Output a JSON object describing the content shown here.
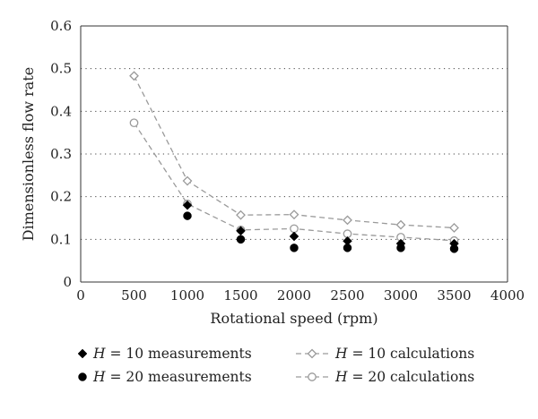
{
  "chart_data": {
    "type": "scatter",
    "xlabel": "Rotational speed (rpm)",
    "ylabel": "Dimensionless flow rate",
    "xlim": [
      0,
      4000
    ],
    "ylim": [
      0,
      0.6
    ],
    "x_ticks": [
      "0",
      "500",
      "1000",
      "1500",
      "2000",
      "2500",
      "3000",
      "3500",
      "4000"
    ],
    "y_ticks": [
      "0",
      "0.1",
      "0.2",
      "0.3",
      "0.4",
      "0.5",
      "0.6"
    ],
    "grid": "horizontal dotted",
    "legend_position": "bottom",
    "series": [
      {
        "name_var": "H",
        "name_rest": " = 10 measurements",
        "marker": "diamond-filled",
        "line": "none",
        "color": "#000000",
        "x": [
          1000,
          1500,
          2000,
          2500,
          3000,
          3500
        ],
        "y": [
          0.18,
          0.12,
          0.107,
          0.096,
          0.09,
          0.09
        ]
      },
      {
        "name_var": "H",
        "name_rest": " = 20 measurements",
        "marker": "circle-filled",
        "line": "none",
        "color": "#000000",
        "x": [
          1000,
          1500,
          2000,
          2500,
          3000,
          3500
        ],
        "y": [
          0.155,
          0.1,
          0.08,
          0.08,
          0.08,
          0.078
        ]
      },
      {
        "name_var": "H",
        "name_rest": " = 10 calculations",
        "marker": "diamond-open",
        "line": "dashed",
        "color": "#9a9a9a",
        "x": [
          500,
          1000,
          1500,
          2000,
          2500,
          3000,
          3500
        ],
        "y": [
          0.483,
          0.237,
          0.157,
          0.158,
          0.145,
          0.134,
          0.127
        ]
      },
      {
        "name_var": "H",
        "name_rest": " = 20 calculations",
        "marker": "circle-open",
        "line": "dashed",
        "color": "#9a9a9a",
        "x": [
          500,
          1000,
          1500,
          2000,
          2500,
          3000,
          3500
        ],
        "y": [
          0.373,
          0.183,
          0.122,
          0.125,
          0.113,
          0.105,
          0.097
        ]
      }
    ]
  }
}
